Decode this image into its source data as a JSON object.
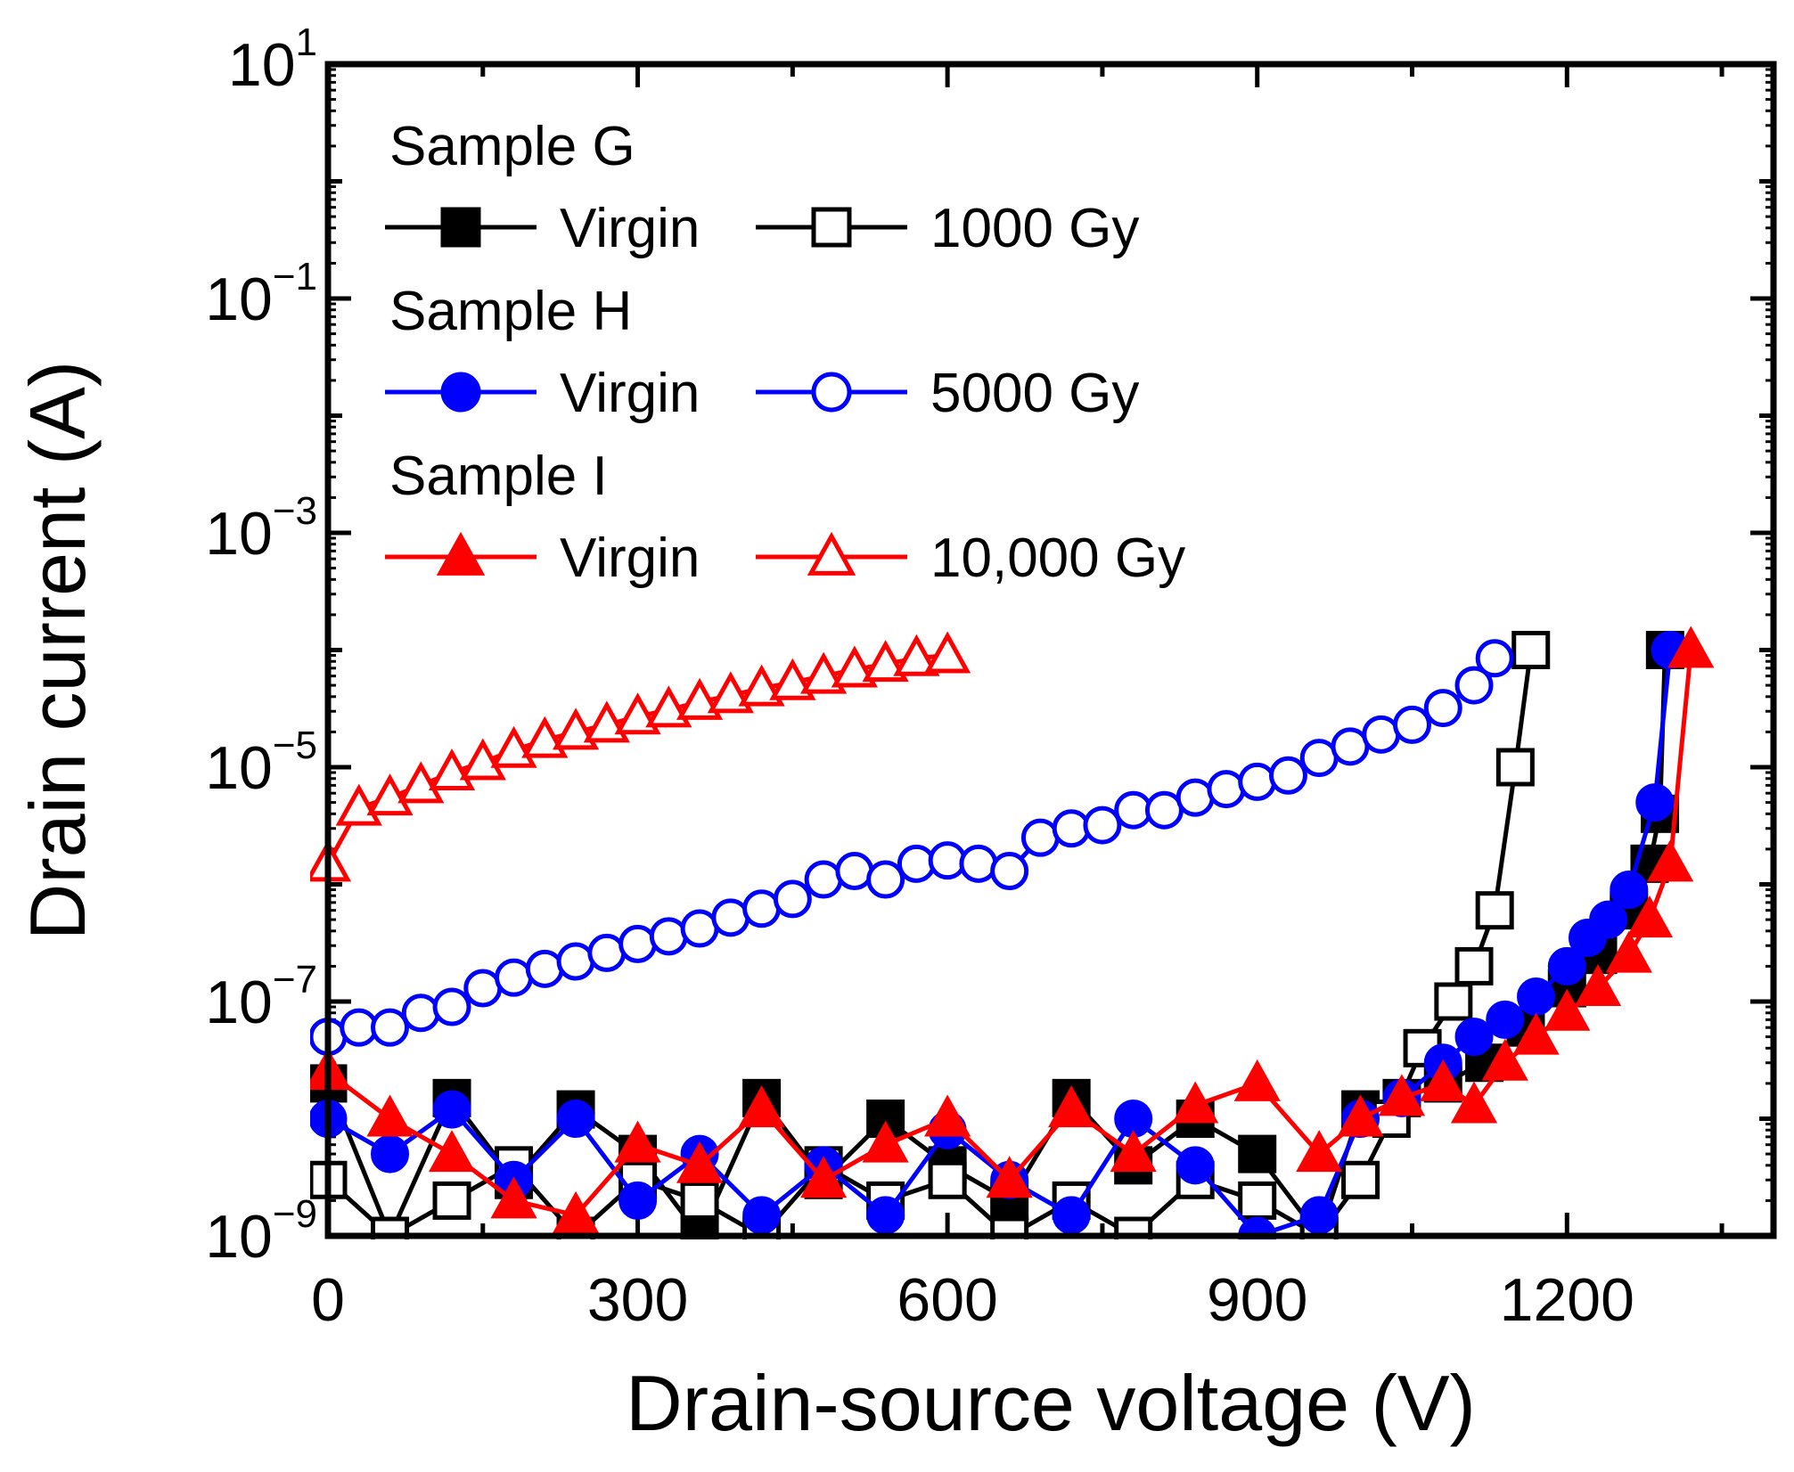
{
  "chart_data": {
    "type": "line",
    "title": "",
    "xlabel": "Drain-source voltage (V)",
    "ylabel": "Drain current (A)",
    "xlim": [
      0,
      1400
    ],
    "ylim_log10": [
      -9,
      1
    ],
    "yscale": "log",
    "x_ticks": [
      0,
      300,
      600,
      900,
      1200
    ],
    "x_tick_labels": [
      "0",
      "300",
      "600",
      "900",
      "1200"
    ],
    "y_ticks": [
      {
        "base": "10",
        "exp": "1",
        "log10": 1
      },
      {
        "base": "10",
        "exp": "−1",
        "log10": -1
      },
      {
        "base": "10",
        "exp": "−3",
        "log10": -3
      },
      {
        "base": "10",
        "exp": "−5",
        "log10": -5
      },
      {
        "base": "10",
        "exp": "−7",
        "log10": -7
      },
      {
        "base": "10",
        "exp": "−9",
        "log10": -9
      }
    ],
    "legend": {
      "placement": "top-left",
      "groups": [
        {
          "header": "Sample G",
          "entries": [
            {
              "label": "Virgin",
              "series": "g_virgin"
            },
            {
              "label": "1000 Gy",
              "series": "g_1000"
            }
          ]
        },
        {
          "header": "Sample H",
          "entries": [
            {
              "label": "Virgin",
              "series": "h_virgin"
            },
            {
              "label": "5000 Gy",
              "series": "h_5000"
            }
          ]
        },
        {
          "header": "Sample I",
          "entries": [
            {
              "label": "Virgin",
              "series": "i_virgin"
            },
            {
              "label": "10,000 Gy",
              "series": "i_10000"
            }
          ]
        }
      ]
    },
    "series": [
      {
        "id": "g_virgin",
        "name": "Sample G Virgin",
        "color": "#000000",
        "marker": "square",
        "filled": true,
        "x": [
          0,
          60,
          120,
          180,
          240,
          300,
          360,
          420,
          480,
          540,
          600,
          660,
          720,
          780,
          840,
          900,
          960,
          1000,
          1040,
          1080,
          1120,
          1160,
          1200,
          1230,
          1260,
          1280,
          1290,
          1295
        ],
        "y": [
          2e-08,
          1e-09,
          1.5e-08,
          3e-09,
          1.2e-08,
          5e-09,
          1e-09,
          1.5e-08,
          3e-09,
          1e-08,
          4e-09,
          2e-09,
          1.5e-08,
          4e-09,
          1e-08,
          5e-09,
          1e-09,
          1.2e-08,
          1.5e-08,
          2e-08,
          3e-08,
          6e-08,
          1.3e-07,
          2.5e-07,
          6e-07,
          1.5e-06,
          4e-06,
          0.0001
        ]
      },
      {
        "id": "g_1000",
        "name": "Sample G 1000 Gy",
        "color": "#000000",
        "marker": "square",
        "filled": false,
        "x": [
          0,
          60,
          120,
          180,
          240,
          300,
          360,
          420,
          480,
          540,
          600,
          660,
          720,
          780,
          840,
          900,
          960,
          1000,
          1030,
          1060,
          1090,
          1110,
          1130,
          1150,
          1165
        ],
        "y": [
          3e-09,
          1e-09,
          2e-09,
          4e-09,
          1e-09,
          3e-09,
          2e-09,
          1e-09,
          4e-09,
          2e-09,
          3e-09,
          1e-09,
          2e-09,
          1e-09,
          3e-09,
          2e-09,
          1e-09,
          3e-09,
          1e-08,
          4e-08,
          1e-07,
          2e-07,
          6e-07,
          1e-05,
          0.0001
        ]
      },
      {
        "id": "h_virgin",
        "name": "Sample H Virgin",
        "color": "#0000ff",
        "marker": "circle",
        "filled": true,
        "x": [
          0,
          60,
          120,
          180,
          240,
          300,
          360,
          420,
          480,
          540,
          600,
          660,
          720,
          780,
          840,
          900,
          960,
          1000,
          1040,
          1080,
          1110,
          1140,
          1170,
          1200,
          1220,
          1240,
          1260,
          1285,
          1300
        ],
        "y": [
          1e-08,
          5e-09,
          1.2e-08,
          3e-09,
          1e-08,
          2e-09,
          5e-09,
          1.5e-09,
          4e-09,
          1.5e-09,
          8e-09,
          3e-09,
          1.5e-09,
          1e-08,
          4e-09,
          1e-09,
          1.5e-09,
          1e-08,
          1.5e-08,
          3e-08,
          5e-08,
          7e-08,
          1.1e-07,
          2e-07,
          3.5e-07,
          5e-07,
          9e-07,
          5e-06,
          0.0001
        ]
      },
      {
        "id": "h_5000",
        "name": "Sample H 5000 Gy",
        "color": "#0000ff",
        "marker": "circle",
        "filled": false,
        "x": [
          0,
          30,
          60,
          90,
          120,
          150,
          180,
          210,
          240,
          270,
          300,
          330,
          360,
          390,
          420,
          450,
          480,
          510,
          540,
          570,
          600,
          630,
          660,
          690,
          720,
          750,
          780,
          810,
          840,
          870,
          900,
          930,
          960,
          990,
          1020,
          1050,
          1080,
          1110,
          1130
        ],
        "y": [
          5e-08,
          6e-08,
          6e-08,
          8e-08,
          9e-08,
          1.3e-07,
          1.6e-07,
          1.9e-07,
          2.2e-07,
          2.6e-07,
          3.1e-07,
          3.6e-07,
          4.2e-07,
          5.2e-07,
          6.2e-07,
          7.5e-07,
          1.1e-06,
          1.3e-06,
          1.1e-06,
          1.5e-06,
          1.6e-06,
          1.5e-06,
          1.3e-06,
          2.5e-06,
          3e-06,
          3.2e-06,
          4.3e-06,
          4.3e-06,
          5.5e-06,
          6.5e-06,
          7.5e-06,
          8.5e-06,
          1.2e-05,
          1.5e-05,
          1.9e-05,
          2.3e-05,
          3.2e-05,
          5e-05,
          8.5e-05
        ]
      },
      {
        "id": "i_virgin",
        "name": "Sample I Virgin",
        "color": "#ff0000",
        "marker": "triangle",
        "filled": true,
        "x": [
          0,
          60,
          120,
          180,
          240,
          300,
          360,
          420,
          480,
          540,
          600,
          660,
          720,
          780,
          840,
          900,
          960,
          1000,
          1040,
          1080,
          1110,
          1140,
          1170,
          1200,
          1230,
          1260,
          1280,
          1300,
          1320
        ],
        "y": [
          2.5e-08,
          1e-08,
          5e-09,
          2e-09,
          1.5e-09,
          6e-09,
          4e-09,
          1.2e-08,
          3e-09,
          6e-09,
          1e-08,
          3e-09,
          1.2e-08,
          5e-09,
          1.3e-08,
          2e-08,
          5e-09,
          1e-08,
          1.5e-08,
          2e-08,
          1.3e-08,
          3e-08,
          5e-08,
          8e-08,
          1.3e-07,
          2.5e-07,
          5e-07,
          1.5e-06,
          0.0001
        ]
      },
      {
        "id": "i_10000",
        "name": "Sample I 10,000 Gy",
        "color": "#ff0000",
        "marker": "triangle",
        "filled": false,
        "x": [
          0,
          30,
          60,
          90,
          120,
          150,
          180,
          210,
          240,
          270,
          300,
          330,
          360,
          390,
          420,
          450,
          480,
          510,
          540,
          570,
          600
        ],
        "y": [
          1.5e-06,
          4.5e-06,
          5.5e-06,
          7e-06,
          9e-06,
          1.1e-05,
          1.4e-05,
          1.7e-05,
          2e-05,
          2.3e-05,
          2.7e-05,
          3.1e-05,
          3.6e-05,
          4.1e-05,
          4.7e-05,
          5.3e-05,
          6e-05,
          6.8e-05,
          7.6e-05,
          8.5e-05,
          9e-05
        ]
      }
    ]
  }
}
